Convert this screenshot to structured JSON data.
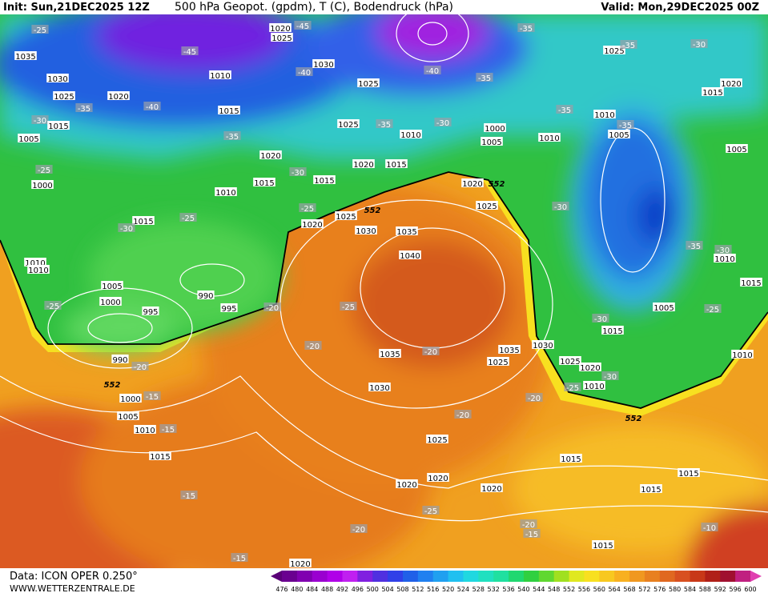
{
  "header": {
    "init": "Init: Sun,21DEC2025 12Z",
    "title": "500 hPa Geopot. (gpdm), T (C), Bodendruck (hPa)",
    "valid": "Valid: Mon,29DEC2025 00Z"
  },
  "footer": {
    "data": "Data: ICON OPER 0.250°",
    "site": "WWW.WETTERZENTRALE.DE"
  },
  "legend": {
    "labels": [
      476,
      480,
      484,
      488,
      492,
      496,
      500,
      504,
      508,
      512,
      516,
      520,
      524,
      528,
      532,
      536,
      540,
      544,
      548,
      552,
      556,
      560,
      564,
      568,
      572,
      576,
      580,
      584,
      588,
      592,
      596,
      600
    ],
    "colors": [
      "#5a0078",
      "#6a0090",
      "#8000b0",
      "#9a00d0",
      "#b000e8",
      "#c020f0",
      "#8020e0",
      "#5030e0",
      "#3040e8",
      "#2060e8",
      "#2080f0",
      "#20a0f0",
      "#20c0f0",
      "#20d8e0",
      "#20e0c0",
      "#20e0a0",
      "#20d870",
      "#30d040",
      "#60d830",
      "#a0e020",
      "#e0e820",
      "#f8e020",
      "#f8c820",
      "#f8b020",
      "#f09820",
      "#e88020",
      "#e06820",
      "#d85020",
      "#c83818",
      "#b02018",
      "#a01030",
      "#c02080",
      "#e040b0"
    ]
  },
  "labels": [
    "1020",
    "1025",
    "-45",
    "1035",
    "1030",
    "1025",
    "1020",
    "-35",
    "-40",
    "-45",
    "1010",
    "-40",
    "1030",
    "1025",
    "-40",
    "-35",
    "-35",
    "1025",
    "-35",
    "-30",
    "1020",
    "1015",
    "1015",
    "1025",
    "-35",
    "1010",
    "-30",
    "1000",
    "1005",
    "1010",
    "-35",
    "1010",
    "-35",
    "1005",
    "1005",
    "-25",
    "-30",
    "1015",
    "1005",
    "-25",
    "1000",
    "-35",
    "1020",
    "1020",
    "1015",
    "-30",
    "1015",
    "1015",
    "1010",
    "-25",
    "1015",
    "-30",
    "1020",
    "552",
    "1025",
    "-30",
    "-25",
    "1025",
    "552",
    "1020",
    "1030",
    "1035",
    "1040",
    "1010",
    "1010",
    "-35",
    "-30",
    "1010",
    "1015",
    "1005",
    "990",
    "1000",
    "995",
    "995",
    "-20",
    "-25",
    "-25",
    "1005",
    "-25",
    "-30",
    "1015",
    "990",
    "-20",
    "-20",
    "1035",
    "-20",
    "1035",
    "1030",
    "1025",
    "1020",
    "1025",
    "-30",
    "-25",
    "1010",
    "1010",
    "552",
    "1000",
    "-15",
    "1030",
    "-20",
    "1005",
    "1010",
    "-15",
    "-20",
    "552",
    "1025",
    "1015",
    "1015",
    "1015",
    "1020",
    "1020",
    "1020",
    "1015",
    "-15",
    "-25",
    "-20",
    "-20",
    "-15",
    "-10",
    "1015",
    "-15",
    "1020"
  ]
}
